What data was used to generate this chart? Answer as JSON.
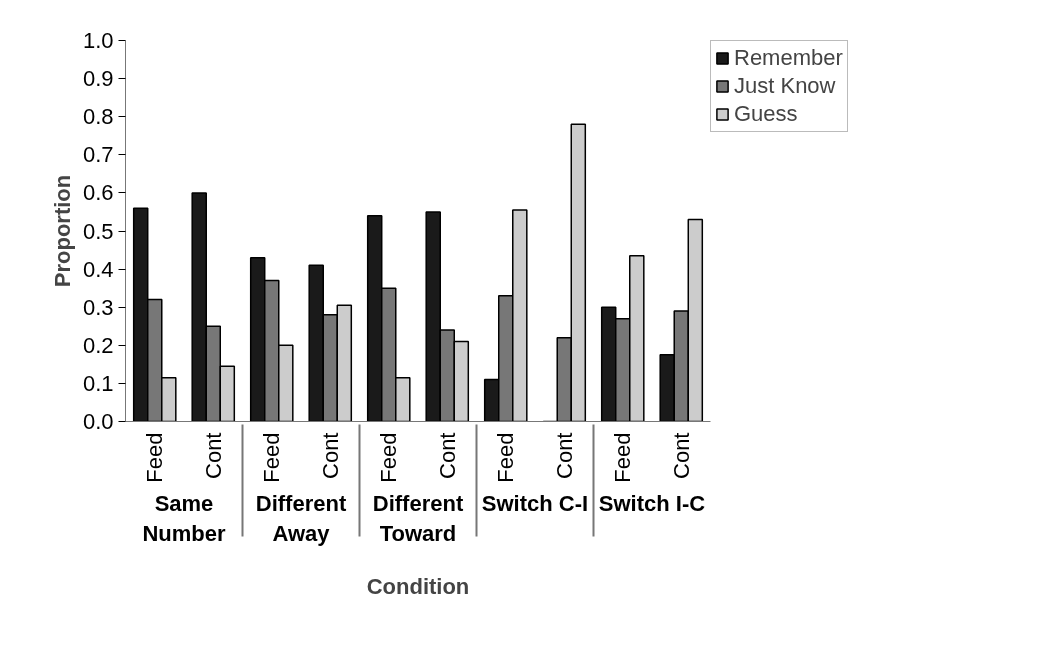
{
  "chart_data": {
    "type": "bar",
    "xlabel": "Condition",
    "ylabel": "Proportion",
    "categories": [
      "Feed",
      "Cont",
      "Feed",
      "Cont",
      "Feed",
      "Cont",
      "Feed",
      "Cont",
      "Feed",
      "Cont"
    ],
    "annotations": [
      "Same\nNumber",
      "Different\nAway",
      "Different\nToward",
      "Switch C-I",
      "Switch I-C"
    ],
    "series": [
      {
        "name": "Remember",
        "color": "#1a1a1a",
        "values": [
          0.56,
          0.6,
          0.43,
          0.41,
          0.54,
          0.55,
          0.11,
          null,
          0.3,
          0.175
        ]
      },
      {
        "name": "Just Know",
        "color": "#777777",
        "values": [
          0.32,
          0.25,
          0.37,
          0.28,
          0.35,
          0.24,
          0.33,
          0.22,
          0.27,
          0.29
        ]
      },
      {
        "name": "Guess",
        "color": "#cccccc",
        "values": [
          0.115,
          0.145,
          0.2,
          0.305,
          0.115,
          0.21,
          0.555,
          0.78,
          0.435,
          0.53
        ]
      }
    ],
    "ylim": [
      0,
      1.0
    ],
    "yticks": [
      {
        "value": 0,
        "label": "0.0"
      },
      0.1,
      0.2,
      0.3,
      0.4,
      0.5,
      0.6,
      0.7,
      0.8,
      0.9,
      {
        "value": 1.0,
        "label": "1.0"
      }
    ],
    "grid": false,
    "legend": "top right"
  }
}
